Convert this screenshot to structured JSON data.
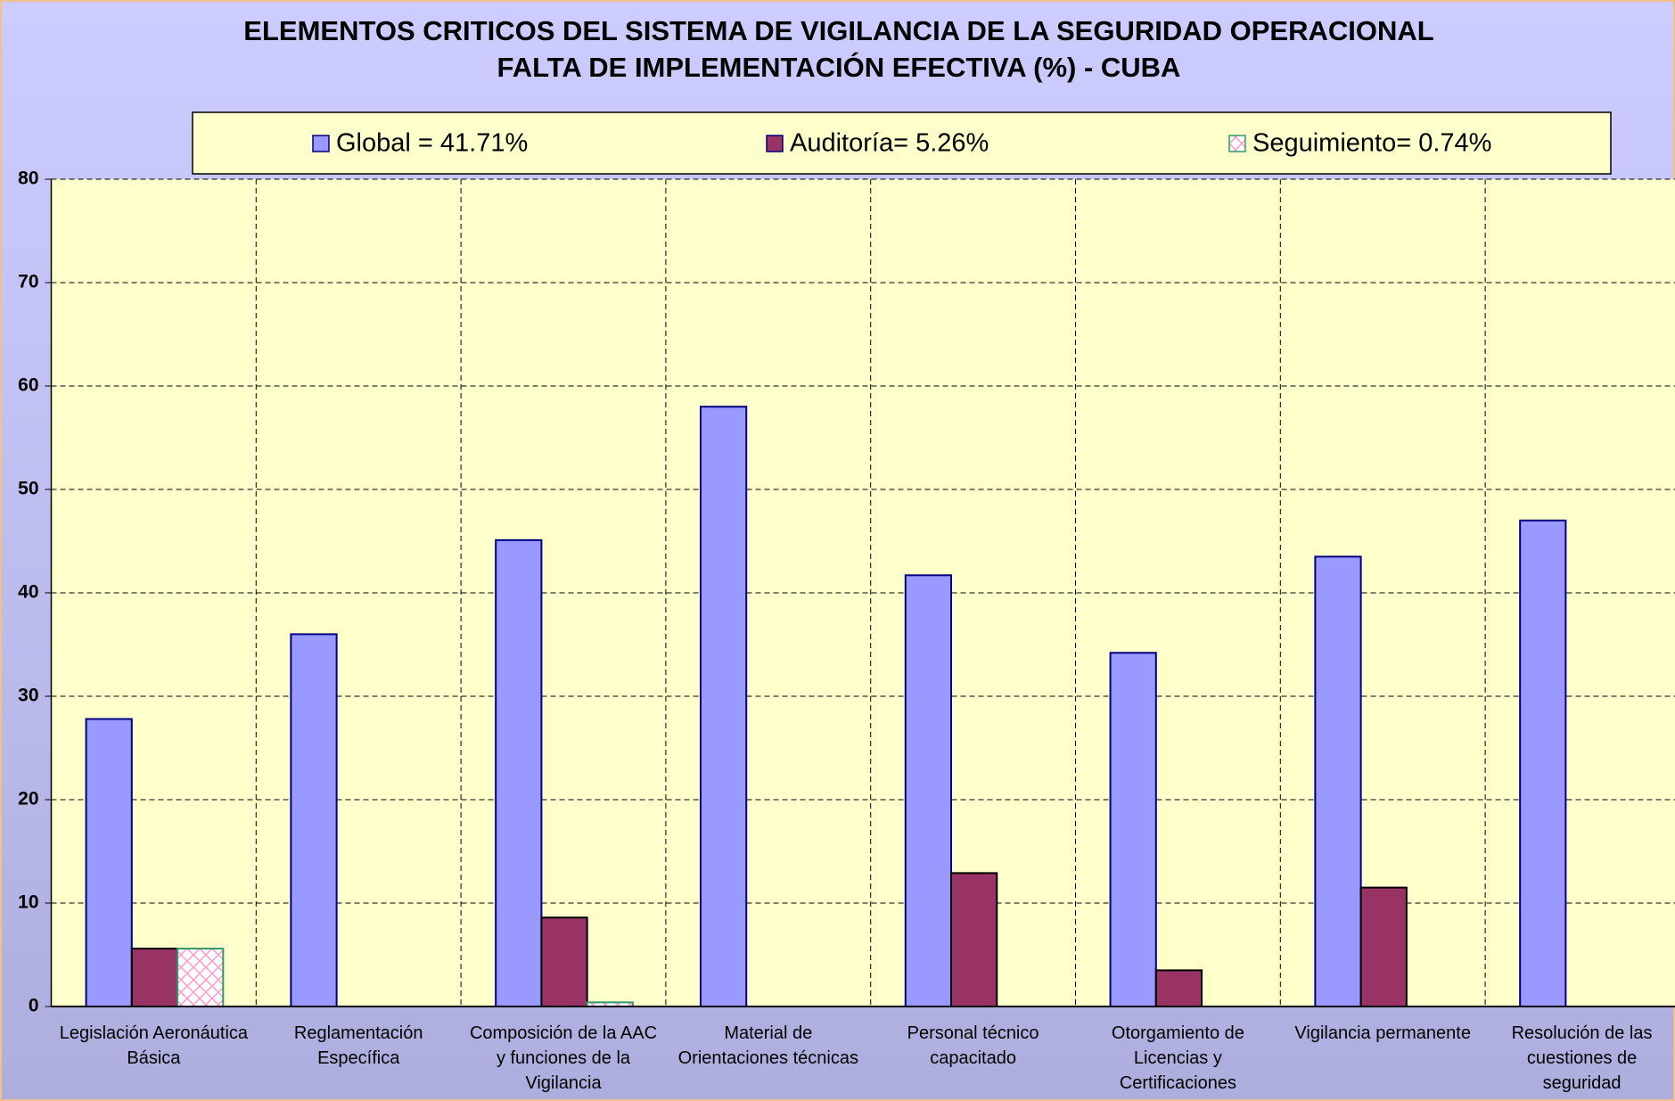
{
  "chart_data": {
    "type": "bar",
    "title": "ELEMENTOS CRITICOS DEL SISTEMA DE VIGILANCIA DE LA SEGURIDAD OPERACIONAL",
    "subtitle": "FALTA DE IMPLEMENTACIÓN EFECTIVA (%) - CUBA",
    "categories": [
      "Legislación Aeronáutica Básica",
      "Reglamentación Específica",
      "Composición de la AAC y funciones de la Vigilancia",
      "Material de Orientaciones técnicas",
      "Personal técnico capacitado",
      "Otorgamiento de Licencias y Certificaciones",
      "Vigilancia permanente",
      "Resolución de las cuestiones de seguridad"
    ],
    "series": [
      {
        "name": "Global = 41.71%",
        "color": "#9999ff",
        "values": [
          27.8,
          36,
          45.1,
          58,
          41.7,
          34.2,
          43.5,
          47
        ]
      },
      {
        "name": "Auditoría= 5.26%",
        "color": "#993366",
        "values": [
          5.6,
          0,
          8.6,
          0,
          12.9,
          3.5,
          11.5,
          0
        ]
      },
      {
        "name": "Seguimiento= 0.74%",
        "color": "#ff99cc",
        "values": [
          5.6,
          0,
          0.4,
          0,
          0,
          0,
          0,
          0
        ]
      }
    ],
    "ylim": [
      0,
      80
    ],
    "yticks": [
      0,
      10,
      20,
      30,
      40,
      50,
      60,
      70,
      80
    ],
    "grid": true,
    "legend": "top"
  }
}
